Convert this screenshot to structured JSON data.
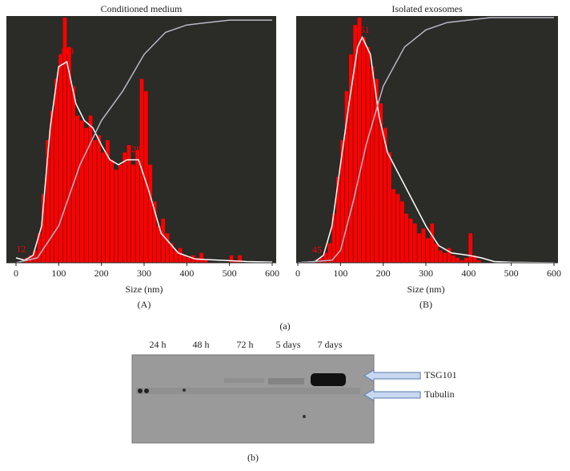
{
  "chart_data": [
    {
      "type": "histogram",
      "title": "Conditioned medium",
      "xlabel": "Size (nm)",
      "panel_label": "(A)",
      "background": "#2b2b27",
      "color": "#ff0000",
      "xlim": [
        0,
        600
      ],
      "xticks": [
        0,
        100,
        200,
        300,
        400,
        500,
        600
      ],
      "ylim": [
        0,
        100
      ],
      "bins": [
        0,
        10,
        20,
        30,
        40,
        50,
        60,
        70,
        80,
        90,
        100,
        110,
        120,
        130,
        140,
        150,
        160,
        170,
        180,
        190,
        200,
        210,
        220,
        230,
        240,
        250,
        260,
        270,
        280,
        290,
        300,
        310,
        320,
        330,
        340,
        350,
        360,
        370,
        380,
        390,
        400,
        410,
        420,
        430,
        440,
        450,
        460,
        470,
        480,
        490,
        500,
        510,
        520,
        530,
        540,
        550,
        560,
        570,
        580,
        590,
        600
      ],
      "values": [
        0,
        0,
        2,
        3,
        5,
        12,
        28,
        50,
        62,
        75,
        85,
        100,
        88,
        72,
        60,
        58,
        55,
        60,
        50,
        52,
        45,
        50,
        42,
        38,
        40,
        45,
        48,
        40,
        46,
        75,
        70,
        40,
        25,
        15,
        18,
        12,
        8,
        5,
        6,
        3,
        2,
        3,
        2,
        4,
        1,
        0,
        0,
        0,
        0,
        0,
        3,
        1,
        3,
        0,
        0,
        0,
        0,
        0,
        0,
        0
      ],
      "curves": [
        {
          "color": "#ffffff",
          "x": [
            0,
            20,
            40,
            60,
            80,
            100,
            119,
            140,
            160,
            180,
            200,
            220,
            240,
            260,
            287,
            310,
            340,
            380,
            420,
            480,
            540,
            600
          ],
          "values": [
            2,
            1,
            3,
            15,
            55,
            80,
            82,
            65,
            58,
            55,
            48,
            42,
            40,
            42,
            42,
            30,
            12,
            4,
            1.5,
            1,
            0.5,
            0.3
          ]
        },
        {
          "color": "#b8b8c8",
          "x": [
            0,
            50,
            100,
            150,
            200,
            250,
            300,
            350,
            400,
            450,
            500,
            600
          ],
          "values": [
            0,
            2,
            15,
            40,
            58,
            70,
            85,
            94,
            97,
            98,
            99,
            99
          ]
        }
      ],
      "peak_labels": [
        {
          "value": 12,
          "label": "12"
        },
        {
          "value": 119,
          "label": "119"
        },
        {
          "value": 287,
          "label": "287"
        }
      ]
    },
    {
      "type": "histogram",
      "title": "Isolated exosomes",
      "xlabel": "Size (nm)",
      "panel_label": "(B)",
      "background": "#2b2b27",
      "color": "#ff0000",
      "xlim": [
        0,
        600
      ],
      "xticks": [
        0,
        100,
        200,
        300,
        400,
        500,
        600
      ],
      "ylim": [
        0,
        100
      ],
      "bins": [
        0,
        10,
        20,
        30,
        40,
        50,
        60,
        70,
        80,
        90,
        100,
        110,
        120,
        130,
        140,
        150,
        160,
        170,
        180,
        190,
        200,
        210,
        220,
        230,
        240,
        250,
        260,
        270,
        280,
        290,
        300,
        310,
        320,
        330,
        340,
        350,
        360,
        370,
        380,
        390,
        400,
        410,
        420,
        430,
        440,
        450,
        460,
        470,
        480,
        490,
        500,
        510,
        520,
        530,
        540,
        550,
        560,
        570,
        580,
        590,
        600
      ],
      "values": [
        0,
        0,
        0,
        0,
        1,
        2,
        4,
        8,
        20,
        35,
        50,
        70,
        85,
        97,
        100,
        92,
        88,
        80,
        75,
        65,
        55,
        45,
        30,
        28,
        25,
        20,
        18,
        16,
        12,
        14,
        10,
        16,
        8,
        5,
        4,
        6,
        3,
        2,
        1,
        2,
        12,
        3,
        1,
        0,
        0,
        0,
        0,
        0,
        0,
        0,
        0,
        0,
        0,
        0,
        0,
        0,
        0,
        0,
        0,
        0
      ],
      "curves": [
        {
          "color": "#ffffff",
          "x": [
            0,
            40,
            60,
            80,
            100,
            120,
            140,
            151,
            170,
            190,
            210,
            240,
            270,
            300,
            330,
            360,
            400,
            430,
            460,
            500,
            600
          ],
          "values": [
            0,
            0.5,
            3,
            15,
            40,
            65,
            88,
            92,
            85,
            60,
            45,
            35,
            25,
            15,
            7,
            4,
            3,
            2,
            0.5,
            0.2,
            0
          ]
        },
        {
          "color": "#b8b8c8",
          "x": [
            0,
            80,
            100,
            130,
            160,
            200,
            250,
            300,
            350,
            400,
            450,
            600
          ],
          "values": [
            0,
            1,
            5,
            25,
            48,
            72,
            88,
            95,
            98,
            99,
            100,
            100
          ]
        }
      ],
      "peak_labels": [
        {
          "value": 45,
          "label": "45"
        },
        {
          "value": 151,
          "label": "151"
        }
      ]
    }
  ],
  "figure_label": "(a)",
  "blot": {
    "lanes": [
      "24 h",
      "48 h",
      "72 h",
      "5 days",
      "7 days"
    ],
    "markers": [
      "TSG101",
      "Tubulin"
    ],
    "panel_label": "(b)"
  }
}
